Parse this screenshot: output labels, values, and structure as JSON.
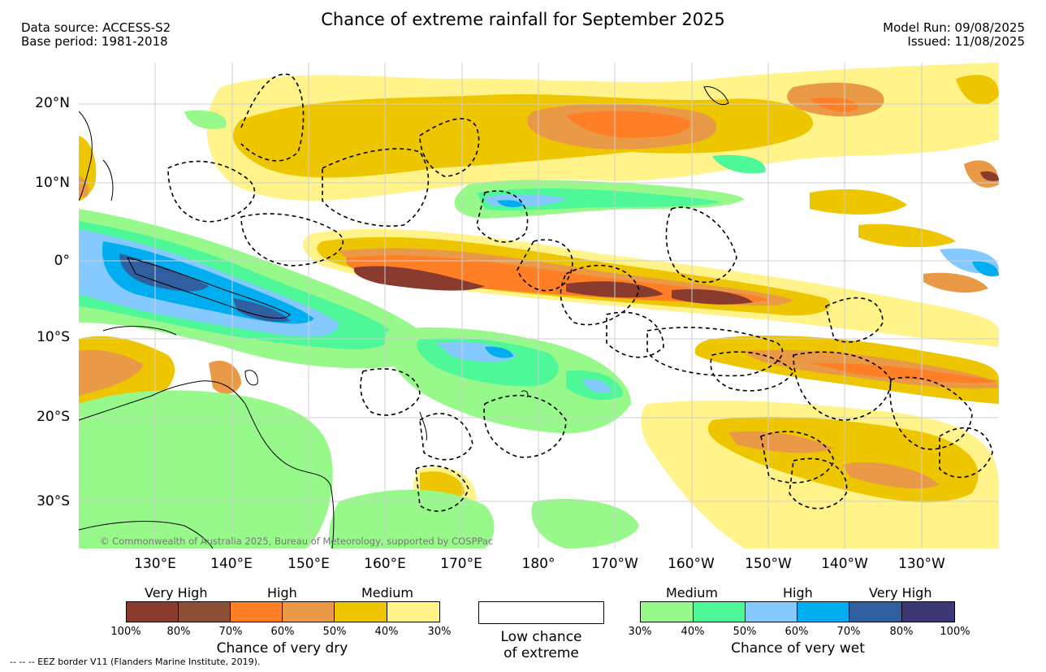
{
  "header": {
    "title": "Chance of extreme rainfall for September 2025",
    "data_source": "Data source: ACCESS-S2",
    "base_period": "Base period: 1981-2018",
    "model_run": "Model Run: 09/08/2025",
    "issued": "Issued: 11/08/2025"
  },
  "map": {
    "lat_labels": [
      "20°N",
      "10°N",
      "0°",
      "10°S",
      "20°S",
      "30°S"
    ],
    "lon_labels": [
      "130°E",
      "140°E",
      "150°E",
      "160°E",
      "170°E",
      "180°",
      "170°W",
      "160°W",
      "150°W",
      "140°W",
      "130°W"
    ],
    "copyright": "© Commonwealth of Australia 2025, Bureau of Meteorology, supported by COSPPac"
  },
  "legend": {
    "dry": {
      "headings": [
        "Very High",
        "High",
        "Medium"
      ],
      "ticks": [
        "100%",
        "80%",
        "70%",
        "60%",
        "50%",
        "40%",
        "30%"
      ],
      "colors": [
        "#893c2e",
        "#8e4f37",
        "#ff7f27",
        "#ea9a46",
        "#edc600",
        "#fff38a"
      ],
      "title": "Chance of very dry"
    },
    "low": {
      "line1": "Low chance",
      "line2": "of extreme",
      "color": "#ffffff"
    },
    "wet": {
      "headings": [
        "Medium",
        "High",
        "Very High"
      ],
      "ticks": [
        "30%",
        "40%",
        "50%",
        "60%",
        "70%",
        "80%",
        "100%"
      ],
      "colors": [
        "#98f98b",
        "#4ef797",
        "#84c9ff",
        "#00aeef",
        "#2f5f9e",
        "#3b3875"
      ],
      "title": "Chance of very wet"
    }
  },
  "footer": "-- -- -- EEZ border V11 (Flanders Marine Institute, 2019)."
}
